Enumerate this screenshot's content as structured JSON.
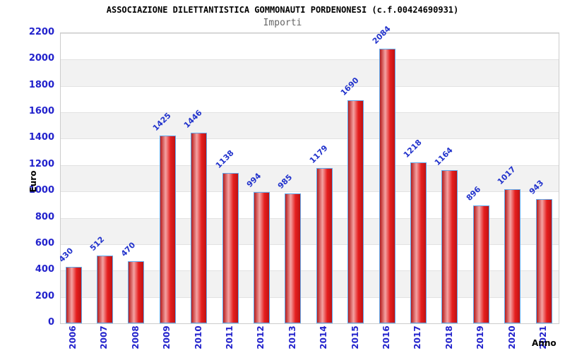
{
  "chart_data": {
    "type": "bar",
    "title": "ASSOCIAZIONE DILETTANTISTICA GOMMONAUTI PORDENONESI (c.f.00424690931)",
    "subtitle": "Importi",
    "categories": [
      "2006",
      "2007",
      "2008",
      "2009",
      "2010",
      "2011",
      "2012",
      "2013",
      "2014",
      "2015",
      "2016",
      "2017",
      "2018",
      "2019",
      "2020",
      "2021"
    ],
    "values": [
      430,
      512,
      470,
      1425,
      1446,
      1138,
      994,
      985,
      1179,
      1690,
      2084,
      1218,
      1164,
      896,
      1017,
      943
    ],
    "xlabel": "Anno",
    "ylabel": "Euro",
    "ylim": [
      0,
      2200
    ],
    "ytick_step": 200,
    "grid": "alternating-horizontal-bands",
    "legend": "none",
    "bar_labels_rotation_deg": -45,
    "xtick_rotation_deg": -90
  },
  "colors": {
    "axis_text": "#2222cc",
    "value_text": "#2233cc",
    "title_text": "#000000",
    "subtitle_text": "#666666",
    "bar_border": "#5fa8ec",
    "bar_gradient": [
      "#b71c1c",
      "#f4a3a3",
      "#e51f1f",
      "#c01212"
    ],
    "band_alt": "#f2f2f2",
    "gridline": "#e2e2e2",
    "plot_border": "#cccccc",
    "background": "#ffffff"
  }
}
